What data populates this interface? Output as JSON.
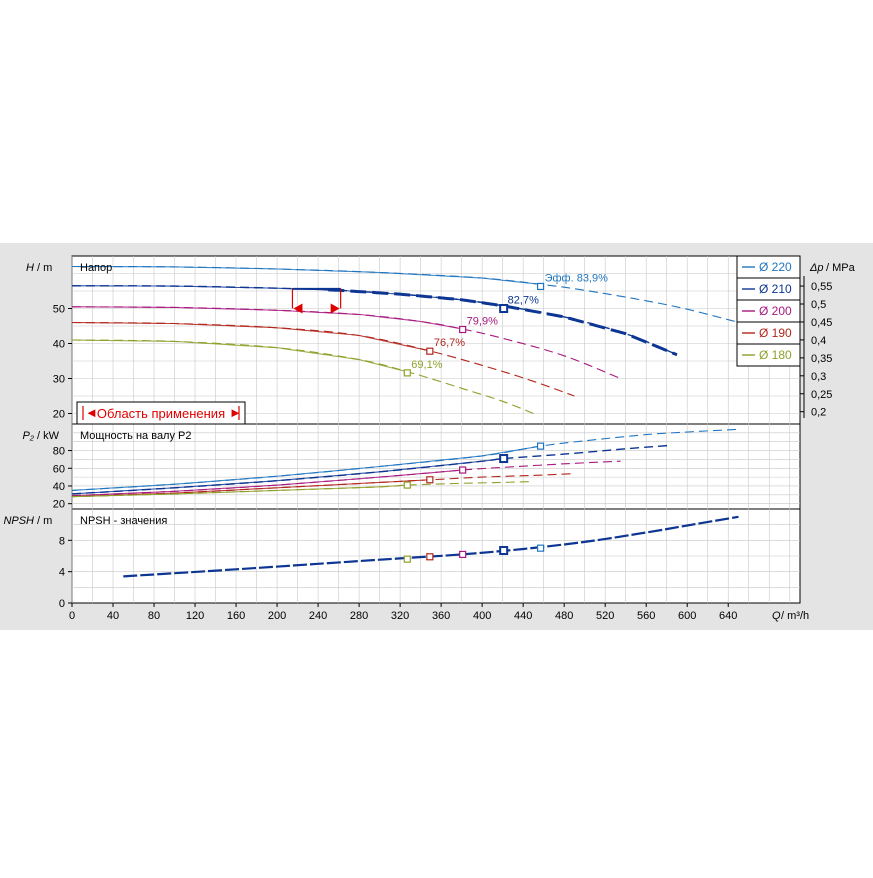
{
  "colors": {
    "background": "#e4e4e4",
    "plot": "#ffffff",
    "grid": "#c8c8c8",
    "d220": "#1f76c0",
    "d210": "#0d3593",
    "d200": "#a8187e",
    "d190": "#b2261c",
    "d180": "#8fa02a",
    "range": "#e00000"
  },
  "legend": {
    "items": [
      {
        "label": "Ø 220",
        "color": "#1f76c0"
      },
      {
        "label": "Ø 210",
        "color": "#0d3593"
      },
      {
        "label": "Ø 200",
        "color": "#a8187e"
      },
      {
        "label": "Ø 190",
        "color": "#b2261c"
      },
      {
        "label": "Ø 180",
        "color": "#8fa02a"
      }
    ]
  },
  "range_box": {
    "label": "Область применения",
    "left_arrow": "◄",
    "right_arrow": "►"
  },
  "chart_data": [
    {
      "type": "line",
      "title": "Напор",
      "ylabel": "H",
      "ylabel_unit": "/ m",
      "y2label": "Δp",
      "y2label_unit": "/ MPa",
      "xlim": [
        0,
        710
      ],
      "ylim": [
        17,
        65
      ],
      "yticks": [
        20,
        30,
        40,
        50
      ],
      "y2ticks": [
        0.2,
        0.25,
        0.3,
        0.35,
        0.4,
        0.45,
        0.5,
        0.55
      ],
      "y2tick_labels": [
        "0,2",
        "0,25",
        "0,3",
        "0,35",
        "0,4",
        "0,45",
        "0,5",
        "0,55"
      ],
      "grid": true,
      "series": [
        {
          "name": "Ø 220",
          "key": "d220",
          "x": [
            0,
            100,
            200,
            300,
            400,
            460,
            500,
            560,
            600,
            640,
            670
          ],
          "y": [
            62,
            61.9,
            61.3,
            60.3,
            58.7,
            56.8,
            55.2,
            52.2,
            49.8,
            46.8,
            44.5
          ],
          "marker": {
            "x": 457,
            "y": 56.3,
            "label": "Эфф.  83,9%"
          }
        },
        {
          "name": "Ø 210",
          "key": "d210",
          "x": [
            0,
            100,
            200,
            260,
            320,
            380,
            420,
            480,
            540,
            590
          ],
          "y": [
            56.5,
            56.4,
            55.8,
            55.2,
            54.1,
            52.5,
            50.8,
            47.6,
            42.8,
            36.8
          ],
          "marker": {
            "x": 421,
            "y": 50,
            "label": "82,7%"
          }
        },
        {
          "name": "Ø 200",
          "key": "d200",
          "x": [
            0,
            100,
            200,
            280,
            340,
            380,
            420,
            480,
            535
          ],
          "y": [
            50.5,
            50.3,
            49.5,
            48.3,
            46.3,
            44.2,
            41.5,
            36.5,
            30
          ],
          "marker": {
            "x": 381,
            "y": 44,
            "label": "79,9%"
          }
        },
        {
          "name": "Ø 190",
          "key": "d190",
          "x": [
            0,
            100,
            200,
            280,
            350,
            410,
            450,
            490
          ],
          "y": [
            46,
            45.7,
            44.5,
            42.3,
            37.8,
            32.9,
            29.2,
            25
          ],
          "marker": {
            "x": 349,
            "y": 37.8,
            "label": "76,7%"
          }
        },
        {
          "name": "Ø 180",
          "key": "d180",
          "x": [
            0,
            100,
            200,
            280,
            330,
            380,
            420,
            450
          ],
          "y": [
            41,
            40.6,
            38.8,
            35.4,
            31.7,
            27.2,
            23.5,
            20
          ],
          "marker": {
            "x": 327,
            "y": 31.6,
            "label": "69,1%"
          }
        }
      ],
      "bold_segments": [
        {
          "key": "d210",
          "x": [
            250,
            590
          ]
        }
      ],
      "range_bracket": {
        "x": [
          215,
          262
        ],
        "y_top": 55.6,
        "y_bottom": 50,
        "key": "d210"
      }
    },
    {
      "type": "line",
      "title": "Мощность на валу P2",
      "ylabel": "P₂",
      "ylabel_unit": "/ kW",
      "ylim": [
        14,
        110
      ],
      "yticks": [
        20,
        40,
        60,
        80
      ],
      "grid": true,
      "series": [
        {
          "name": "Ø 220",
          "key": "d220",
          "x": [
            0,
            100,
            200,
            300,
            400,
            457,
            500,
            560,
            600,
            650
          ],
          "y": [
            35,
            42,
            51,
            62,
            74,
            85,
            91,
            98,
            101,
            104
          ],
          "marker": {
            "x": 457,
            "y": 85
          }
        },
        {
          "name": "Ø 210",
          "key": "d210",
          "x": [
            0,
            100,
            200,
            300,
            400,
            421,
            480,
            540,
            585
          ],
          "y": [
            31,
            38,
            46,
            56,
            68,
            71,
            76,
            82,
            86
          ],
          "marker": {
            "x": 421,
            "y": 71
          }
        },
        {
          "name": "Ø 200",
          "key": "d200",
          "x": [
            0,
            100,
            200,
            300,
            381,
            420,
            480,
            535
          ],
          "y": [
            29,
            34,
            41,
            50,
            58,
            61,
            65,
            68
          ],
          "marker": {
            "x": 381,
            "y": 58
          }
        },
        {
          "name": "Ø 190",
          "key": "d190",
          "x": [
            0,
            100,
            200,
            300,
            349,
            400,
            450,
            490
          ],
          "y": [
            28,
            32,
            38,
            44,
            47,
            50,
            52,
            54
          ],
          "marker": {
            "x": 349,
            "y": 47
          }
        },
        {
          "name": "Ø 180",
          "key": "d180",
          "x": [
            0,
            100,
            200,
            300,
            327,
            380,
            420,
            450
          ],
          "y": [
            28,
            31,
            35,
            39,
            41,
            43,
            44,
            45
          ],
          "marker": {
            "x": 327,
            "y": 41
          }
        }
      ]
    },
    {
      "type": "line",
      "title": "NPSH - значения",
      "ylabel": "NPSH",
      "ylabel_unit": "/ m",
      "xlabel": "Q",
      "xlabel_unit": "/ m³/h",
      "xlim": [
        0,
        710
      ],
      "xticks": [
        0,
        40,
        80,
        120,
        160,
        200,
        240,
        280,
        320,
        360,
        400,
        440,
        480,
        520,
        560,
        600,
        640
      ],
      "ylim": [
        0,
        12
      ],
      "yticks": [
        0,
        4,
        8
      ],
      "grid": true,
      "series": [
        {
          "name": "NPSH",
          "key": "d210",
          "x": [
            50,
            100,
            160,
            240,
            320,
            380,
            440,
            500,
            560,
            600,
            650
          ],
          "y": [
            3.4,
            3.8,
            4.3,
            5,
            5.7,
            6.2,
            6.9,
            7.8,
            9,
            9.9,
            11
          ]
        }
      ],
      "markers": [
        {
          "x": 327,
          "y": 5.6,
          "key": "d180"
        },
        {
          "x": 349,
          "y": 5.9,
          "key": "d190"
        },
        {
          "x": 381,
          "y": 6.2,
          "key": "d200"
        },
        {
          "x": 421,
          "y": 6.7,
          "key": "d210"
        },
        {
          "x": 457,
          "y": 7.0,
          "key": "d220"
        }
      ]
    }
  ]
}
